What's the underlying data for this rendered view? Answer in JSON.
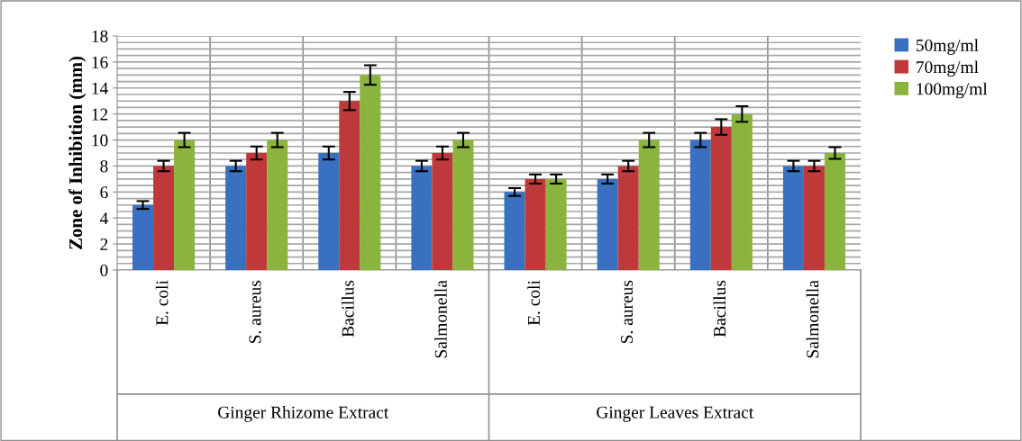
{
  "chart_data": {
    "type": "bar",
    "ylabel": "Zone of Inhibition (mm)",
    "categories": [
      "E. coli",
      "S. aureus",
      "Bacillus",
      "Salmonella",
      "E. coli",
      "S. aureus",
      "Bacillus",
      "Salmonella"
    ],
    "annotations": [
      "Ginger Rhizome Extract",
      "Ginger Leaves Extract"
    ],
    "series": [
      {
        "name": "50mg/ml",
        "color": "#3a70c0",
        "values": [
          5,
          8,
          9,
          8,
          6,
          7,
          10,
          8
        ],
        "errors": [
          0.3,
          0.4,
          0.5,
          0.4,
          0.3,
          0.35,
          0.55,
          0.4
        ]
      },
      {
        "name": "70mg/ml",
        "color": "#c0393a",
        "values": [
          8,
          9,
          13,
          9,
          7,
          8,
          11,
          8
        ],
        "errors": [
          0.4,
          0.5,
          0.7,
          0.5,
          0.35,
          0.4,
          0.6,
          0.4
        ]
      },
      {
        "name": "100mg/ml",
        "color": "#8ab43e",
        "values": [
          10,
          10,
          15,
          10,
          7,
          10,
          12,
          9
        ],
        "errors": [
          0.55,
          0.55,
          0.75,
          0.55,
          0.35,
          0.55,
          0.6,
          0.45
        ]
      }
    ],
    "ylim": [
      0,
      18
    ],
    "yticks": [
      0,
      2,
      4,
      6,
      8,
      10,
      12,
      14,
      16,
      18
    ],
    "grid": true,
    "legend": "top right"
  }
}
